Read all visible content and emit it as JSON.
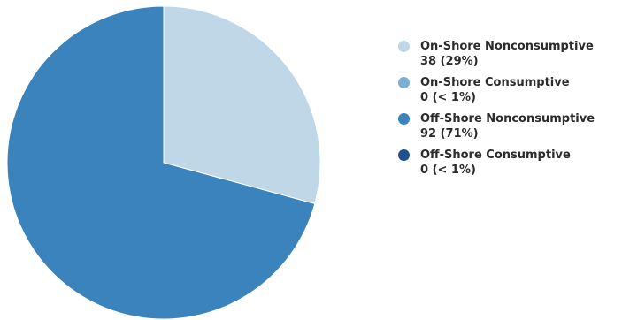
{
  "chart_data": {
    "type": "pie",
    "title": "",
    "slices": [
      {
        "label": "On-Shore Nonconsumptive",
        "value": 38,
        "value_text": "38 (29%)",
        "color": "#bfd7e7"
      },
      {
        "label": "On-Shore Consumptive",
        "value": 0,
        "value_text": "0 (< 1%)",
        "color": "#7bafd4"
      },
      {
        "label": "Off-Shore Nonconsumptive",
        "value": 92,
        "value_text": "92 (71%)",
        "color": "#3a83bd"
      },
      {
        "label": "Off-Shore Consumptive",
        "value": 0,
        "value_text": "0 (< 1%)",
        "color": "#1f4f91"
      }
    ],
    "legend_position": "right"
  }
}
